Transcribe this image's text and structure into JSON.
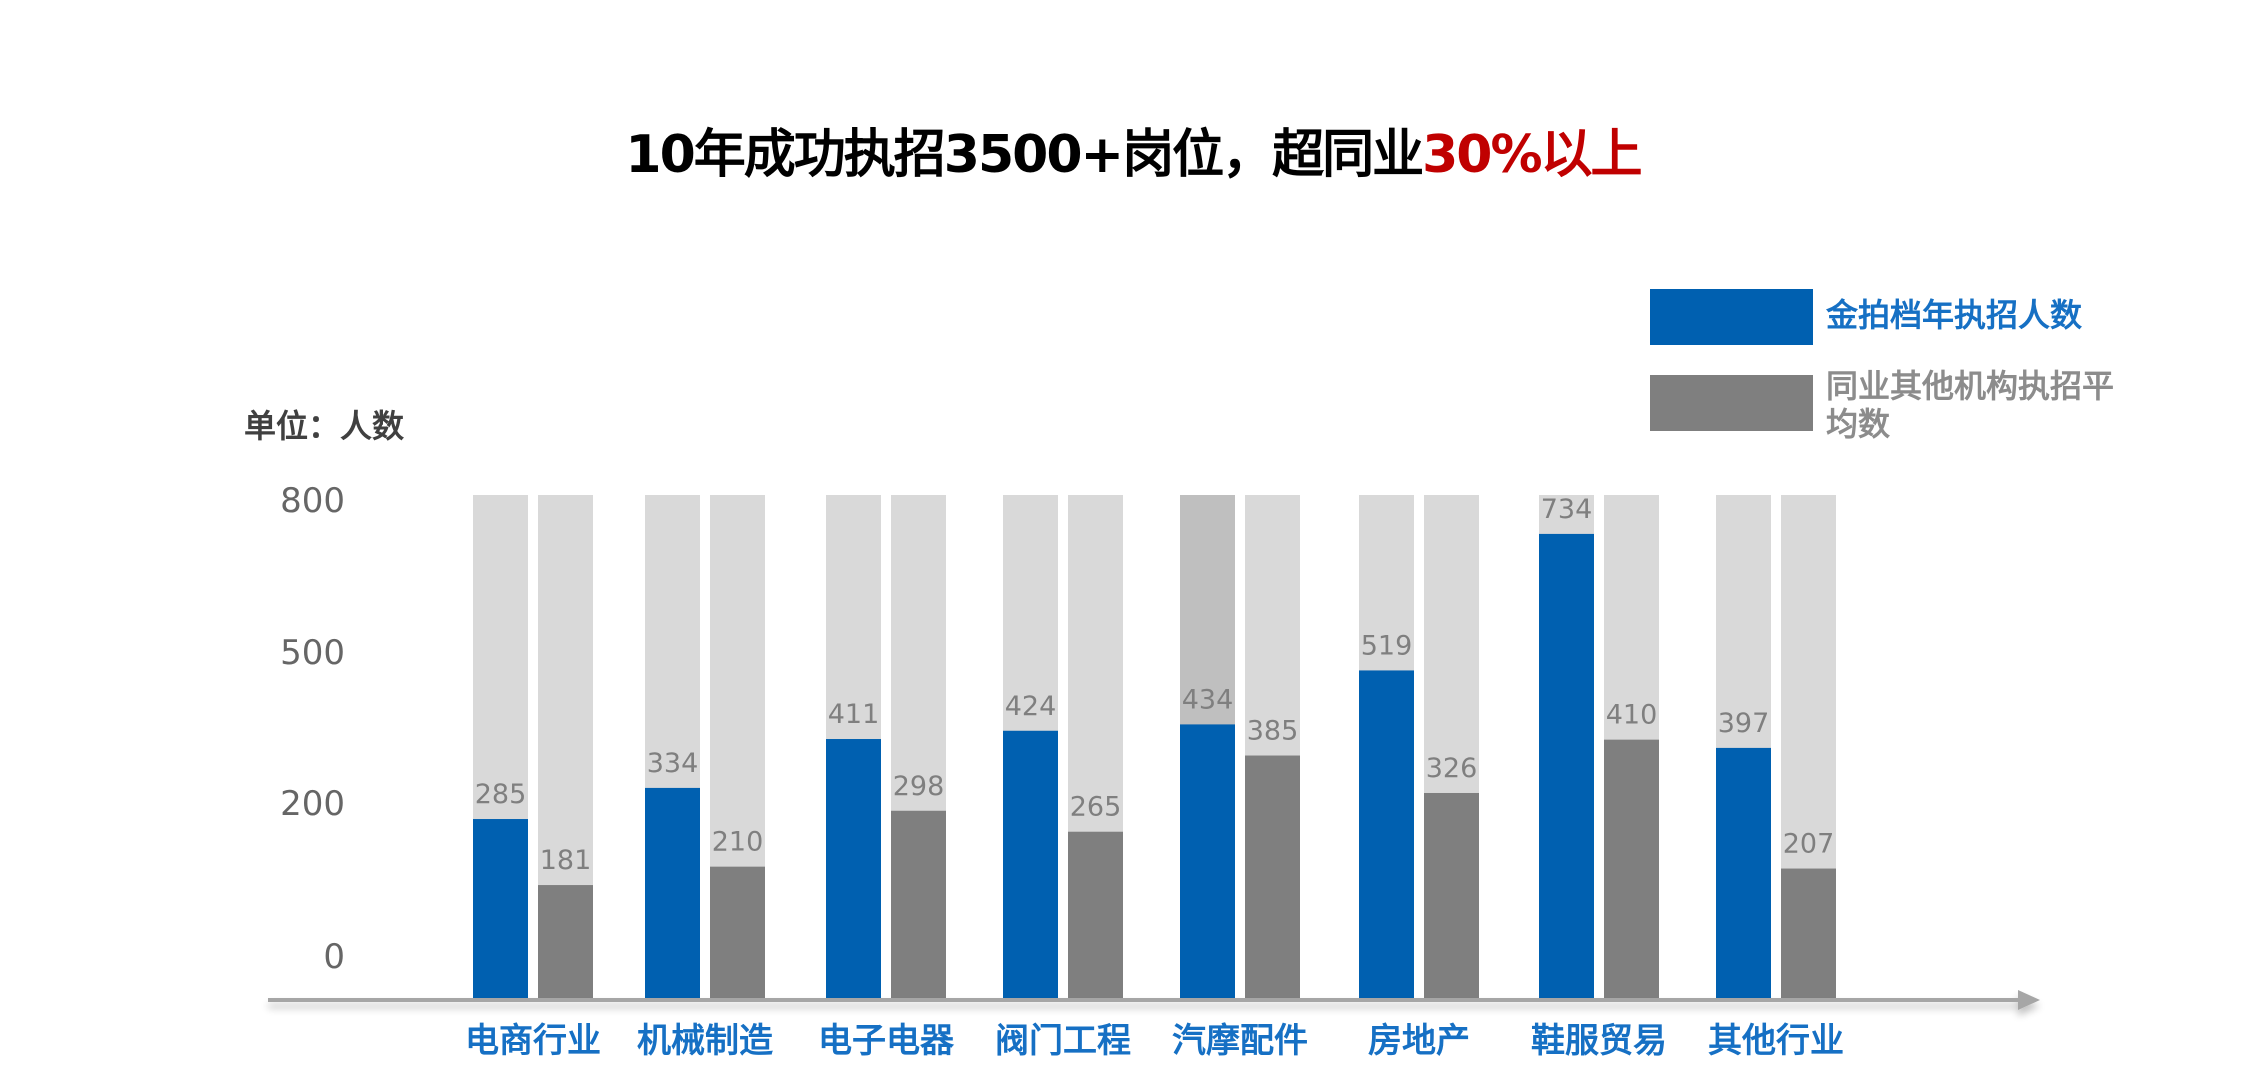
{
  "title": {
    "main": "10年成功执招3500+岗位，超同业",
    "highlight": "30%以上"
  },
  "unit_label": "单位：人数",
  "legend": {
    "series_a": "金拍档年执招人数",
    "series_b_line1": "同业其他机构执招平",
    "series_b_line2": "均数"
  },
  "colors": {
    "title": "#000000",
    "highlight": "#c00000",
    "series_a": "#0060b0",
    "series_b": "#7f7f7f",
    "background_bar": "#d9d9d9",
    "background_bar_emph": "#bfbfbf",
    "axis": "#a6a6a6",
    "category_label": "#1670c4",
    "legend_a_text": "#1670c4",
    "legend_b_text": "#8c8c8c"
  },
  "chart_data": {
    "type": "bar",
    "categories": [
      "电商行业",
      "机械制造",
      "电子电器",
      "阀门工程",
      "汽摩配件",
      "房地产",
      "鞋服贸易",
      "其他行业"
    ],
    "series": [
      {
        "name": "金拍档年执招人数",
        "values": [
          285,
          334,
          411,
          424,
          434,
          519,
          734,
          397
        ]
      },
      {
        "name": "同业其他机构执招平均数",
        "values": [
          181,
          210,
          298,
          265,
          385,
          326,
          410,
          207
        ]
      }
    ],
    "yticks": [
      0,
      200,
      500,
      800
    ],
    "ylim": [
      0,
      800
    ],
    "ylabel": "单位：人数",
    "grid": false,
    "legend_position": "top-right"
  }
}
